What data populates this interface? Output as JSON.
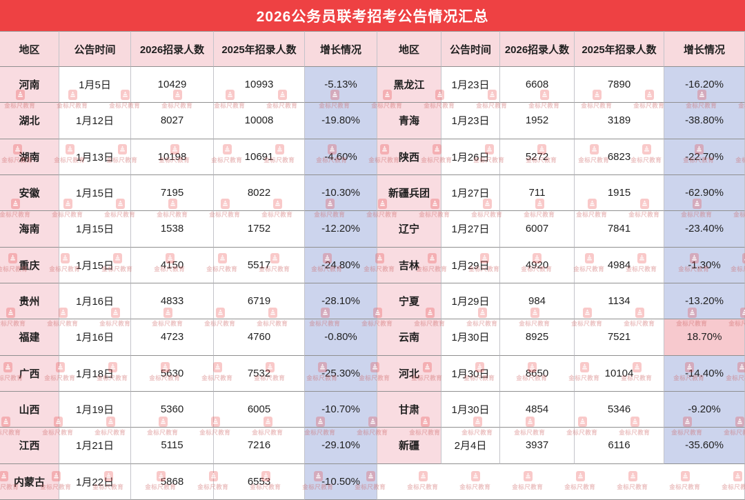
{
  "title": "2026公务员联考招考公告情况汇总",
  "table": {
    "columns": [
      "地区",
      "公告时间",
      "2026招录人数",
      "2025年招录人数",
      "增长情况"
    ],
    "left_rows": [
      {
        "region": "河南",
        "date": "1月5日",
        "n2026": "10429",
        "n2025": "10993",
        "growth": "-5.13%"
      },
      {
        "region": "湖北",
        "date": "1月12日",
        "n2026": "8027",
        "n2025": "10008",
        "growth": "-19.80%"
      },
      {
        "region": "湖南",
        "date": "1月13日",
        "n2026": "10198",
        "n2025": "10691",
        "growth": "-4.60%"
      },
      {
        "region": "安徽",
        "date": "1月15日",
        "n2026": "7195",
        "n2025": "8022",
        "growth": "-10.30%"
      },
      {
        "region": "海南",
        "date": "1月15日",
        "n2026": "1538",
        "n2025": "1752",
        "growth": "-12.20%"
      },
      {
        "region": "重庆",
        "date": "1月15日",
        "n2026": "4150",
        "n2025": "5517",
        "growth": "-24.80%"
      },
      {
        "region": "贵州",
        "date": "1月16日",
        "n2026": "4833",
        "n2025": "6719",
        "growth": "-28.10%"
      },
      {
        "region": "福建",
        "date": "1月16日",
        "n2026": "4723",
        "n2025": "4760",
        "growth": "-0.80%"
      },
      {
        "region": "广西",
        "date": "1月18日",
        "n2026": "5630",
        "n2025": "7532",
        "growth": "-25.30%"
      },
      {
        "region": "山西",
        "date": "1月19日",
        "n2026": "5360",
        "n2025": "6005",
        "growth": "-10.70%"
      },
      {
        "region": "江西",
        "date": "1月21日",
        "n2026": "5115",
        "n2025": "7216",
        "growth": "-29.10%"
      },
      {
        "region": "内蒙古",
        "date": "1月22日",
        "n2026": "5868",
        "n2025": "6553",
        "growth": "-10.50%"
      }
    ],
    "right_rows": [
      {
        "region": "黑龙江",
        "date": "1月23日",
        "n2026": "6608",
        "n2025": "7890",
        "growth": "-16.20%"
      },
      {
        "region": "青海",
        "date": "1月23日",
        "n2026": "1952",
        "n2025": "3189",
        "growth": "-38.80%"
      },
      {
        "region": "陕西",
        "date": "1月26日",
        "n2026": "5272",
        "n2025": "6823",
        "growth": "-22.70%"
      },
      {
        "region": "新疆兵团",
        "date": "1月27日",
        "n2026": "711",
        "n2025": "1915",
        "growth": "-62.90%"
      },
      {
        "region": "辽宁",
        "date": "1月27日",
        "n2026": "6007",
        "n2025": "7841",
        "growth": "-23.40%"
      },
      {
        "region": "吉林",
        "date": "1月29日",
        "n2026": "4920",
        "n2025": "4984",
        "growth": "-1.30%"
      },
      {
        "region": "宁夏",
        "date": "1月29日",
        "n2026": "984",
        "n2025": "1134",
        "growth": "-13.20%"
      },
      {
        "region": "云南",
        "date": "1月30日",
        "n2026": "8925",
        "n2025": "7521",
        "growth": "18.70%"
      },
      {
        "region": "河北",
        "date": "1月30日",
        "n2026": "8650",
        "n2025": "10104",
        "growth": "-14.40%"
      },
      {
        "region": "甘肃",
        "date": "1月30日",
        "n2026": "4854",
        "n2025": "5346",
        "growth": "-9.20%"
      },
      {
        "region": "新疆",
        "date": "2月4日",
        "n2026": "3937",
        "n2025": "6116",
        "growth": "-35.60%"
      }
    ],
    "right_trailing_empty_row": true
  },
  "watermark": {
    "text": "金标尺教育",
    "icon": "stacked-pyramid-badge-icon"
  },
  "colors": {
    "title_bg": "#ee4143",
    "header_bg": "#f8dade",
    "region_bg": "#f9dce1",
    "growth_negative_bg": "#ccd4ed",
    "growth_positive_bg": "#f7c9ce",
    "watermark_red": "#e83c3c",
    "text": "#1f1f1f"
  }
}
